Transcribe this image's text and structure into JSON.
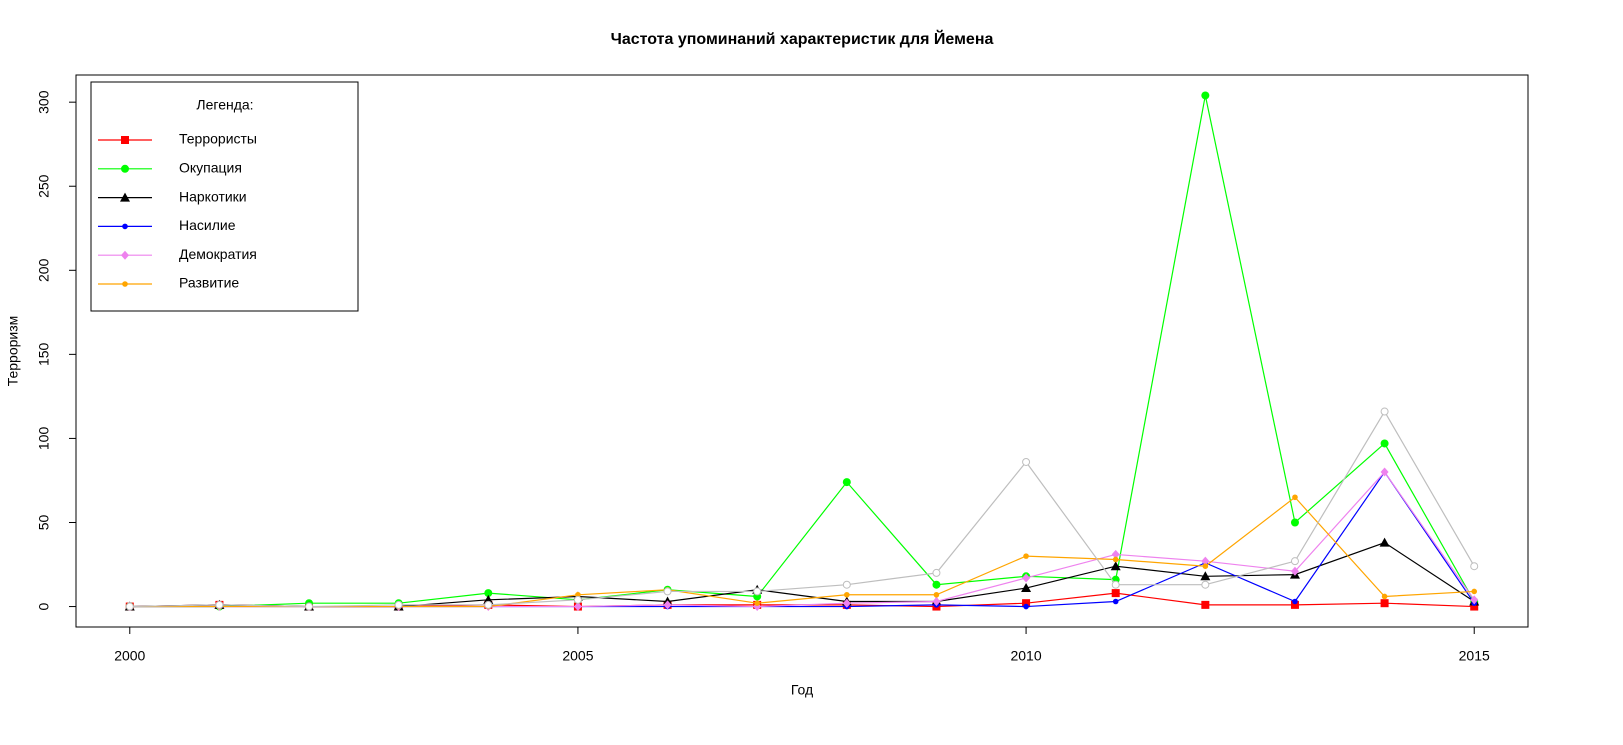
{
  "chart_data": {
    "type": "line",
    "title": "Частота упоминаний характеристик для Йемена",
    "x_label": "Год",
    "y_label": "Терроризм",
    "legend_title": "Легенда:",
    "legend_position": "top-left",
    "x": [
      2000,
      2001,
      2002,
      2003,
      2004,
      2005,
      2006,
      2007,
      2008,
      2009,
      2010,
      2011,
      2012,
      2013,
      2014,
      2015
    ],
    "xlim": [
      1999.4,
      2015.6
    ],
    "xticks": [
      2000,
      2005,
      2010,
      2015
    ],
    "ylim": [
      -12.16,
      316.16
    ],
    "yticks": [
      0,
      50,
      100,
      150,
      200,
      250,
      300
    ],
    "series": [
      {
        "name": "Террористы",
        "color": "#ff0000",
        "marker": "square",
        "values": [
          0,
          1,
          0,
          0,
          1,
          0,
          1,
          1,
          1,
          0,
          2,
          8,
          1,
          1,
          2,
          0
        ]
      },
      {
        "name": "Окупация",
        "color": "#00ff00",
        "marker": "circle",
        "values": [
          0,
          0,
          2,
          2,
          8,
          4,
          10,
          6,
          74,
          13,
          18,
          16,
          304,
          50,
          97,
          3
        ]
      },
      {
        "name": "Наркотики",
        "color": "#000000",
        "marker": "triangle",
        "values": [
          0,
          1,
          0,
          0,
          4,
          6,
          3,
          10,
          3,
          3,
          11,
          24,
          18,
          19,
          38,
          3
        ]
      },
      {
        "name": "Насилие",
        "color": "#0000ff",
        "marker": "dot",
        "values": [
          0,
          0,
          0,
          0,
          0,
          0,
          0,
          0,
          0,
          1,
          0,
          3,
          26,
          3,
          80,
          2
        ]
      },
      {
        "name": "Демократия",
        "color": "#ee82ee",
        "marker": "diamond",
        "values": [
          0,
          0,
          0,
          0,
          0,
          0,
          1,
          0,
          2,
          3,
          17,
          31,
          27,
          21,
          80,
          4
        ]
      },
      {
        "name": "Развитие",
        "color": "#ffa500",
        "marker": "dot",
        "values": [
          0,
          0,
          0,
          0,
          0,
          7,
          10,
          2,
          7,
          7,
          30,
          28,
          24,
          65,
          6,
          9
        ]
      },
      {
        "color": "#bebebe",
        "marker": "open-circle",
        "values": [
          0,
          1,
          0,
          1,
          1,
          4,
          9,
          9,
          13,
          20,
          86,
          13,
          13,
          27,
          116,
          24
        ]
      }
    ]
  }
}
